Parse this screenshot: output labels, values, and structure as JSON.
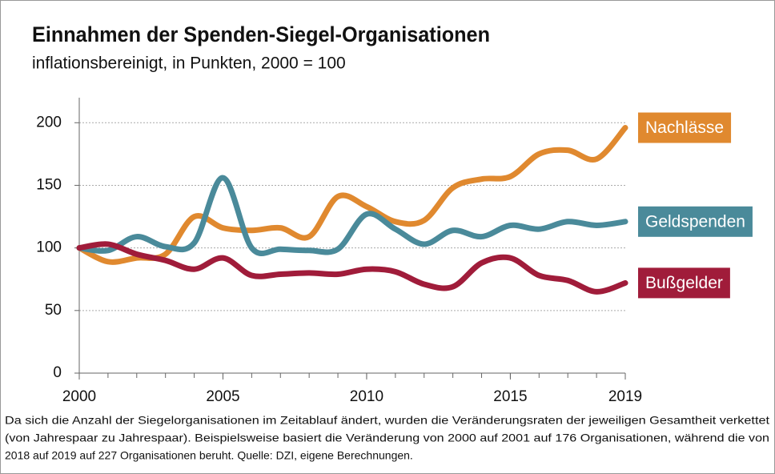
{
  "chart_data": {
    "type": "line",
    "title": "Einnahmen der Spenden-Siegel-Organisationen",
    "subtitle": "inflationsbereinigt, in Punkten, 2000 = 100",
    "x": [
      2000,
      2001,
      2002,
      2003,
      2004,
      2005,
      2006,
      2007,
      2008,
      2009,
      2010,
      2011,
      2012,
      2013,
      2014,
      2015,
      2016,
      2017,
      2018,
      2019
    ],
    "series": [
      {
        "name": "Nachlässe",
        "color": "#e0892f",
        "values": [
          100,
          89,
          92,
          95,
          125,
          116,
          114,
          116,
          109,
          141,
          133,
          121,
          122,
          148,
          155,
          157,
          175,
          178,
          171,
          196
        ]
      },
      {
        "name": "Geldspenden",
        "color": "#4a8a9a",
        "values": [
          100,
          98,
          109,
          101,
          104,
          156,
          100,
          99,
          98,
          99,
          127,
          115,
          103,
          114,
          109,
          118,
          115,
          121,
          118,
          121
        ]
      },
      {
        "name": "Bußgelder",
        "color": "#a01c3a",
        "values": [
          100,
          103,
          95,
          90,
          83,
          92,
          78,
          79,
          80,
          79,
          83,
          81,
          71,
          69,
          88,
          92,
          78,
          74,
          65,
          72
        ]
      }
    ],
    "xlim": [
      2000,
      2019
    ],
    "xticks": [
      2000,
      2005,
      2010,
      2015,
      2019
    ],
    "ylim": [
      0,
      220
    ],
    "yticks": [
      0,
      50,
      100,
      150,
      200
    ],
    "grid": true,
    "note": [
      "Da sich die Anzahl der Siegelorganisationen im Zeitablauf ändert, wurden die Veränderungsraten der jeweiligen Gesamtheit verkettet",
      "(von Jahrespaar zu Jahrespaar). Beispielsweise basiert die Veränderung von 2000 auf 2001 auf 176 Organisationen, während die von",
      "2018 auf 2019 auf 227 Organisationen beruht. Quelle: DZI, eigene Berechnungen."
    ]
  }
}
